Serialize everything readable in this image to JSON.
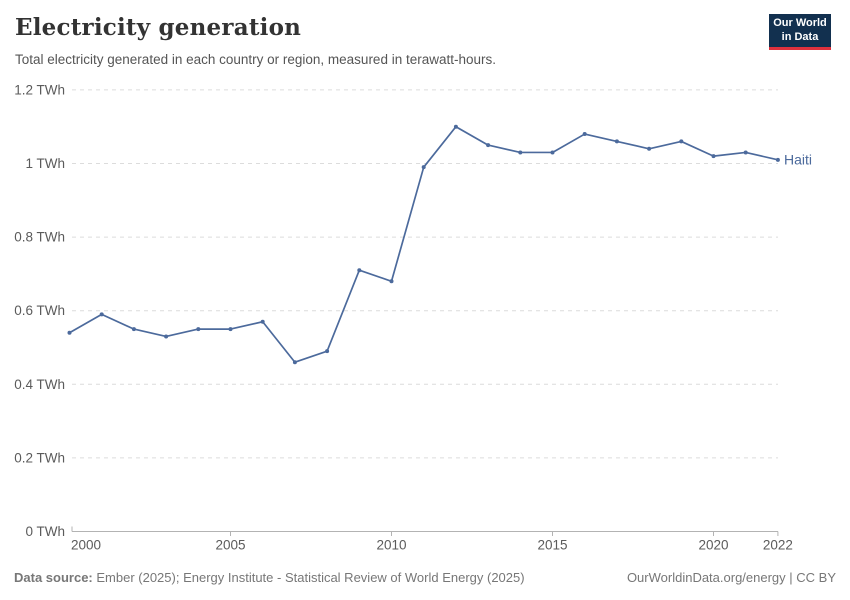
{
  "header": {
    "title": "Electricity generation",
    "subtitle": "Total electricity generated in each country or region, measured in terawatt-hours.",
    "logo": {
      "line1": "Our World",
      "line2": "in Data",
      "bg_color": "#12304f",
      "accent_color": "#e0313d"
    }
  },
  "footer": {
    "source_label": "Data source:",
    "source_text": " Ember (2025); Energy Institute - Statistical Review of World Energy (2025)",
    "attribution": "OurWorldinData.org/energy | CC BY"
  },
  "chart_data": {
    "type": "line",
    "title": "Electricity generation",
    "subtitle": "Total electricity generated in each country or region, measured in terawatt-hours.",
    "unit": "TWh",
    "x": [
      2000,
      2001,
      2002,
      2003,
      2004,
      2005,
      2006,
      2007,
      2008,
      2009,
      2010,
      2011,
      2012,
      2013,
      2014,
      2015,
      2016,
      2017,
      2018,
      2019,
      2020,
      2021,
      2022
    ],
    "series": [
      {
        "name": "Haiti",
        "color": "#4c6a9c",
        "values": [
          0.54,
          0.59,
          0.55,
          0.53,
          0.55,
          0.55,
          0.57,
          0.46,
          0.49,
          0.71,
          0.68,
          0.99,
          1.1,
          1.05,
          1.03,
          1.03,
          1.08,
          1.06,
          1.04,
          1.06,
          1.02,
          1.03,
          1.01
        ]
      }
    ],
    "ylim": [
      0,
      1.2
    ],
    "yticks": [
      0,
      0.2,
      0.4,
      0.6,
      0.8,
      1,
      1.2
    ],
    "ytick_labels": [
      "0 TWh",
      "0.2 TWh",
      "0.4 TWh",
      "0.6 TWh",
      "0.8 TWh",
      "1 TWh",
      "1.2 TWh"
    ],
    "xticks": [
      2000,
      2005,
      2010,
      2015,
      2020,
      2022
    ],
    "grid": true,
    "legend_position": "end-of-line",
    "colors": {
      "gridline": "#dcdcdc",
      "axis": "#b3b3b3",
      "tick_label": "#5b5b5b"
    }
  }
}
